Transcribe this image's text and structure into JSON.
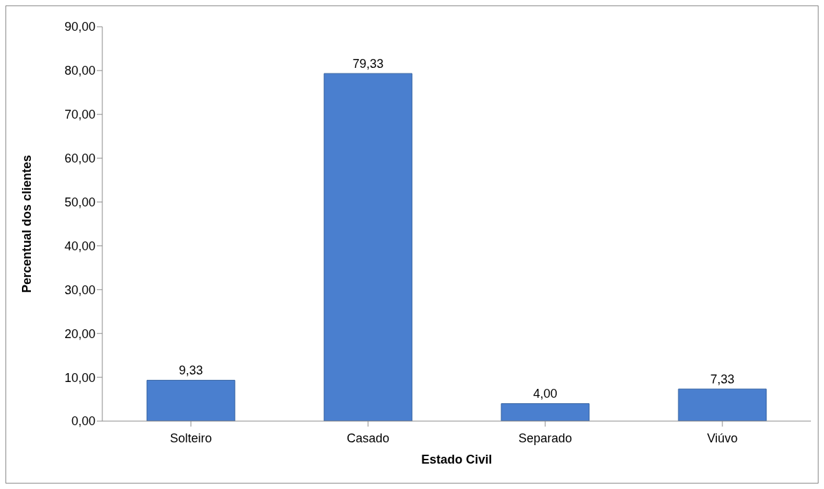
{
  "chart_data": {
    "type": "bar",
    "xlabel": "Estado Civil",
    "ylabel": "Percentual dos clientes",
    "categories": [
      "Solteiro",
      "Casado",
      "Separado",
      "Viúvo"
    ],
    "values": [
      9.33,
      79.33,
      4.0,
      7.33
    ],
    "value_labels": [
      "9,33",
      "79,33",
      "4,00",
      "7,33"
    ],
    "color": "#4a7fcf",
    "ylim": [
      0,
      90
    ],
    "yticks": [
      {
        "value": 0,
        "label": "0,00"
      },
      {
        "value": 10,
        "label": "10,00"
      },
      {
        "value": 20,
        "label": "20,00"
      },
      {
        "value": 30,
        "label": "30,00"
      },
      {
        "value": 40,
        "label": "40,00"
      },
      {
        "value": 50,
        "label": "50,00"
      },
      {
        "value": 60,
        "label": "60,00"
      },
      {
        "value": 70,
        "label": "70,00"
      },
      {
        "value": 80,
        "label": "80,00"
      },
      {
        "value": 90,
        "label": "90,00"
      }
    ],
    "grid": false,
    "legend": false
  }
}
